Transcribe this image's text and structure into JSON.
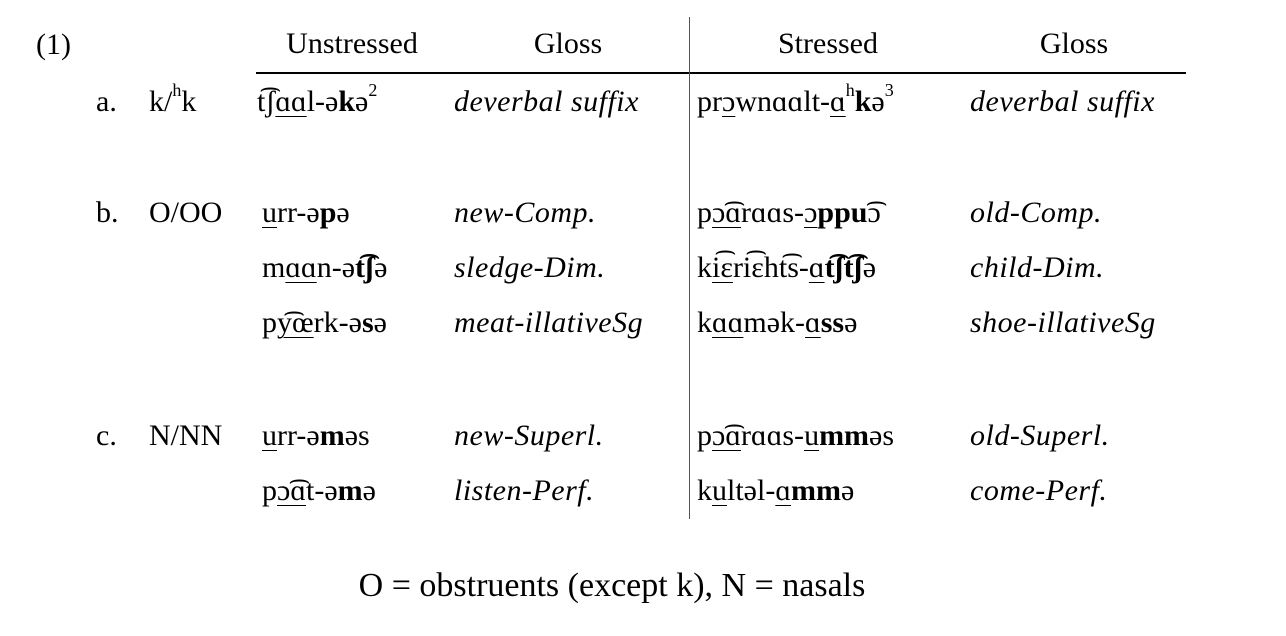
{
  "example_number": "(1)",
  "headers": {
    "unstressed": "Unstressed",
    "gloss_left": "Gloss",
    "stressed": "Stressed",
    "gloss_right": "Gloss"
  },
  "rows": [
    {
      "label": "a.",
      "category": "k/ʰk",
      "unstressed": "t͡ʃɑɑl-əkə²",
      "gloss1": "deverbal suffix",
      "stressed": "prɔwnɑɑlt-ɑʰkə³",
      "gloss2": "deverbal suffix"
    },
    {
      "label": "b.",
      "category": "O/OO",
      "unstressed": "urr-əpə",
      "gloss1": "new-Comp.",
      "stressed": "pɔ͡ɑrɑɑs-ɔppu͡ɔ",
      "gloss2": "old-Comp."
    },
    {
      "label": "",
      "category": "",
      "unstressed": "mɑɑn-ət͡ʃə",
      "gloss1": "sledge-Dim.",
      "stressed": "ki͡ɛri͡ɛht͡s-ɑt͡ʃt͡ʃə",
      "gloss2": "child-Dim."
    },
    {
      "label": "",
      "category": "",
      "unstressed": "py͡œrk-əsə",
      "gloss1": "meat-illativeSg",
      "stressed": "kɑɑmək-ɑssə",
      "gloss2": "shoe-illativeSg"
    },
    {
      "label": "c.",
      "category": "N/NN",
      "unstressed": "urr-əməs",
      "gloss1": "new-Superl.",
      "stressed": "pɔ͡ɑrɑɑs-umməs",
      "gloss2": "old-Superl."
    },
    {
      "label": "",
      "category": "",
      "unstressed": "pɔ͡ɑt-əmə",
      "gloss1": "listen-Perf.",
      "stressed": "kultəl-ɑmmə",
      "gloss2": "come-Perf."
    }
  ],
  "footnote": "O = obstruents (except k), N = nasals"
}
